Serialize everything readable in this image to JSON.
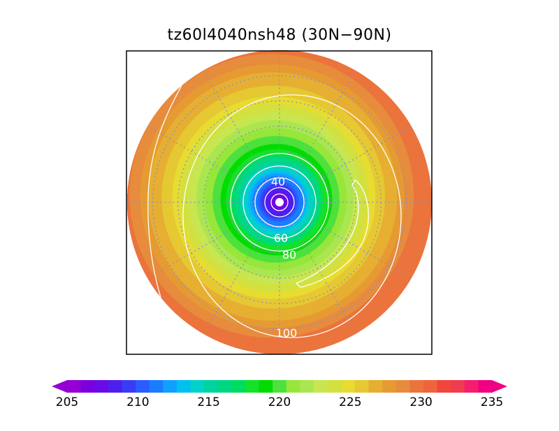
{
  "title": "tz60l4040nsh48 (30N−90N)",
  "chart_data": {
    "type": "heatmap",
    "projection": "north-polar-stereographic",
    "lat_range": [
      30,
      90
    ],
    "colorbar": {
      "min": 205,
      "max": 235,
      "step": 1,
      "tick_values": [
        205,
        210,
        215,
        220,
        225,
        230,
        235
      ],
      "tick_labels": [
        "205",
        "210",
        "215",
        "220",
        "225",
        "230",
        "235"
      ],
      "extend": "both",
      "colors": [
        "#9400d3",
        "#7b00e0",
        "#6a0ae6",
        "#4d1ef0",
        "#3a3cf5",
        "#2a5cff",
        "#1a7cff",
        "#10a0ff",
        "#00c0f0",
        "#00d2c8",
        "#00d2a0",
        "#00d782",
        "#00dc60",
        "#14e128",
        "#00dc00",
        "#4ce13c",
        "#96e63c",
        "#aae650",
        "#c8e650",
        "#d2e140",
        "#e6dc32",
        "#e6c832",
        "#e6af32",
        "#e69b32",
        "#e68c3c",
        "#eb733c",
        "#f0643c",
        "#f0463c",
        "#f03c50",
        "#f51e6e",
        "#f00082"
      ]
    },
    "contours": [
      {
        "value": 40,
        "label": "40"
      },
      {
        "value": 60,
        "label": "60"
      },
      {
        "value": 80,
        "label": "80"
      },
      {
        "value": 100,
        "label": "100"
      }
    ],
    "field": {
      "center_value": 205,
      "values_by_latitude": [
        {
          "lat": 90,
          "value": 205
        },
        {
          "lat": 84,
          "value": 208
        },
        {
          "lat": 78,
          "value": 213
        },
        {
          "lat": 72,
          "value": 217
        },
        {
          "lat": 66,
          "value": 220
        },
        {
          "lat": 60,
          "value": 222
        },
        {
          "lat": 54,
          "value": 224
        },
        {
          "lat": 48,
          "value": 226
        },
        {
          "lat": 42,
          "value": 227
        },
        {
          "lat": 36,
          "value": 229
        },
        {
          "lat": 30,
          "value": 230
        }
      ]
    }
  }
}
